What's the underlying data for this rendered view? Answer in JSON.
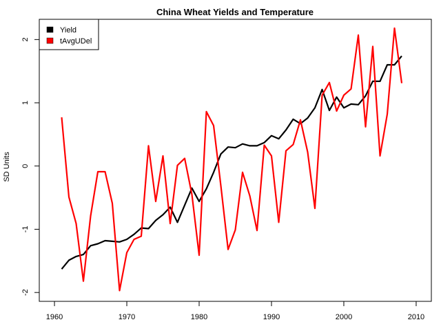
{
  "chart_data": {
    "type": "line",
    "title": "China Wheat Yields and Temperature",
    "xlabel": "",
    "ylabel": "SD Units",
    "xlim": [
      1957.9,
      2012.1
    ],
    "ylim": [
      -2.14,
      2.32
    ],
    "x_ticks": [
      1960,
      1970,
      1980,
      1990,
      2000,
      2010
    ],
    "x_tick_labels": [
      "1960",
      "1970",
      "1980",
      "1990",
      "2000",
      "2010"
    ],
    "y_ticks": [
      -2,
      -1,
      0,
      1,
      2
    ],
    "y_tick_labels": [
      "-2",
      "-1",
      "0",
      "1",
      "2"
    ],
    "grid": false,
    "legend_position": "top-left",
    "x": [
      1961,
      1962,
      1963,
      1964,
      1965,
      1966,
      1967,
      1968,
      1969,
      1970,
      1971,
      1972,
      1973,
      1974,
      1975,
      1976,
      1977,
      1978,
      1979,
      1980,
      1981,
      1982,
      1983,
      1984,
      1985,
      1986,
      1987,
      1988,
      1989,
      1990,
      1991,
      1992,
      1993,
      1994,
      1995,
      1996,
      1997,
      1998,
      1999,
      2000,
      2001,
      2002,
      2003,
      2004,
      2005,
      2006,
      2007,
      2008
    ],
    "series": [
      {
        "name": "Yield",
        "color": "#000000",
        "values": [
          -1.63,
          -1.49,
          -1.43,
          -1.4,
          -1.26,
          -1.23,
          -1.18,
          -1.19,
          -1.2,
          -1.16,
          -1.08,
          -0.98,
          -0.99,
          -0.86,
          -0.77,
          -0.65,
          -0.89,
          -0.62,
          -0.35,
          -0.56,
          -0.36,
          -0.1,
          0.19,
          0.3,
          0.29,
          0.35,
          0.32,
          0.32,
          0.37,
          0.48,
          0.43,
          0.57,
          0.74,
          0.67,
          0.76,
          0.92,
          1.21,
          0.88,
          1.09,
          0.92,
          0.98,
          0.97,
          1.11,
          1.34,
          1.34,
          1.6,
          1.6,
          1.74
        ]
      },
      {
        "name": "tAvgUDel",
        "color": "#ff0000",
        "values": [
          0.77,
          -0.49,
          -0.91,
          -1.82,
          -0.79,
          -0.09,
          -0.09,
          -0.59,
          -1.97,
          -1.37,
          -1.16,
          -1.11,
          0.32,
          -0.56,
          0.16,
          -0.91,
          0.01,
          0.12,
          -0.45,
          -1.41,
          0.86,
          0.64,
          -0.31,
          -1.32,
          -1.01,
          -0.1,
          -0.47,
          -1.02,
          0.33,
          0.16,
          -0.89,
          0.24,
          0.34,
          0.73,
          0.22,
          -0.67,
          1.12,
          1.32,
          0.87,
          1.12,
          1.22,
          2.07,
          0.62,
          1.89,
          0.16,
          0.82,
          2.18,
          1.31
        ]
      }
    ]
  }
}
